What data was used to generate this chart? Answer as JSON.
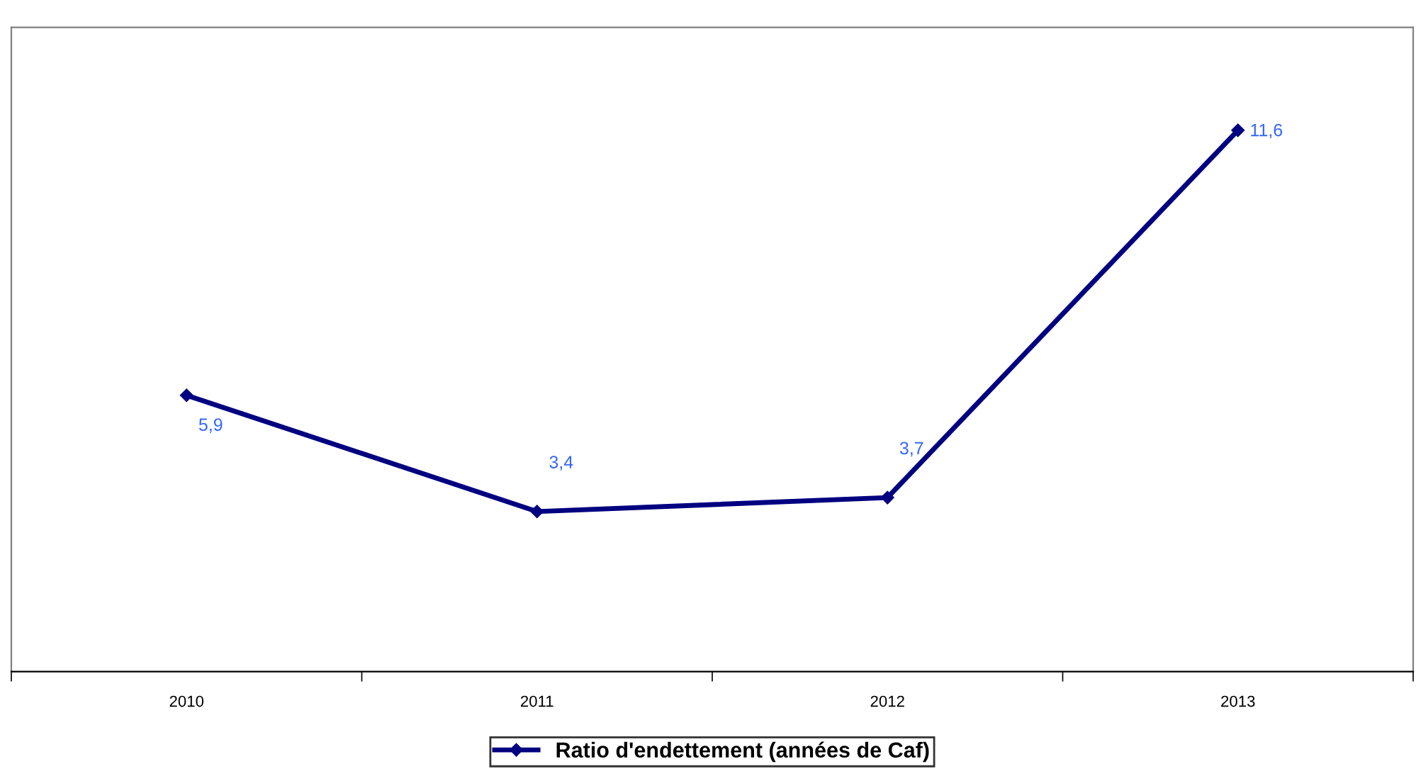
{
  "chart_data": {
    "type": "line",
    "categories": [
      "2010",
      "2011",
      "2012",
      "2013"
    ],
    "series": [
      {
        "name": "Ratio d'endettement (années de Caf)",
        "color": "#000080",
        "values": [
          5.9,
          3.4,
          3.7,
          11.6
        ],
        "value_labels": [
          "5,9",
          "3,4",
          "3,7",
          "11,6"
        ]
      }
    ],
    "marker": "diamond",
    "line_style": "solid",
    "legend": "bottom",
    "grid": false,
    "tick_labels": "x"
  }
}
